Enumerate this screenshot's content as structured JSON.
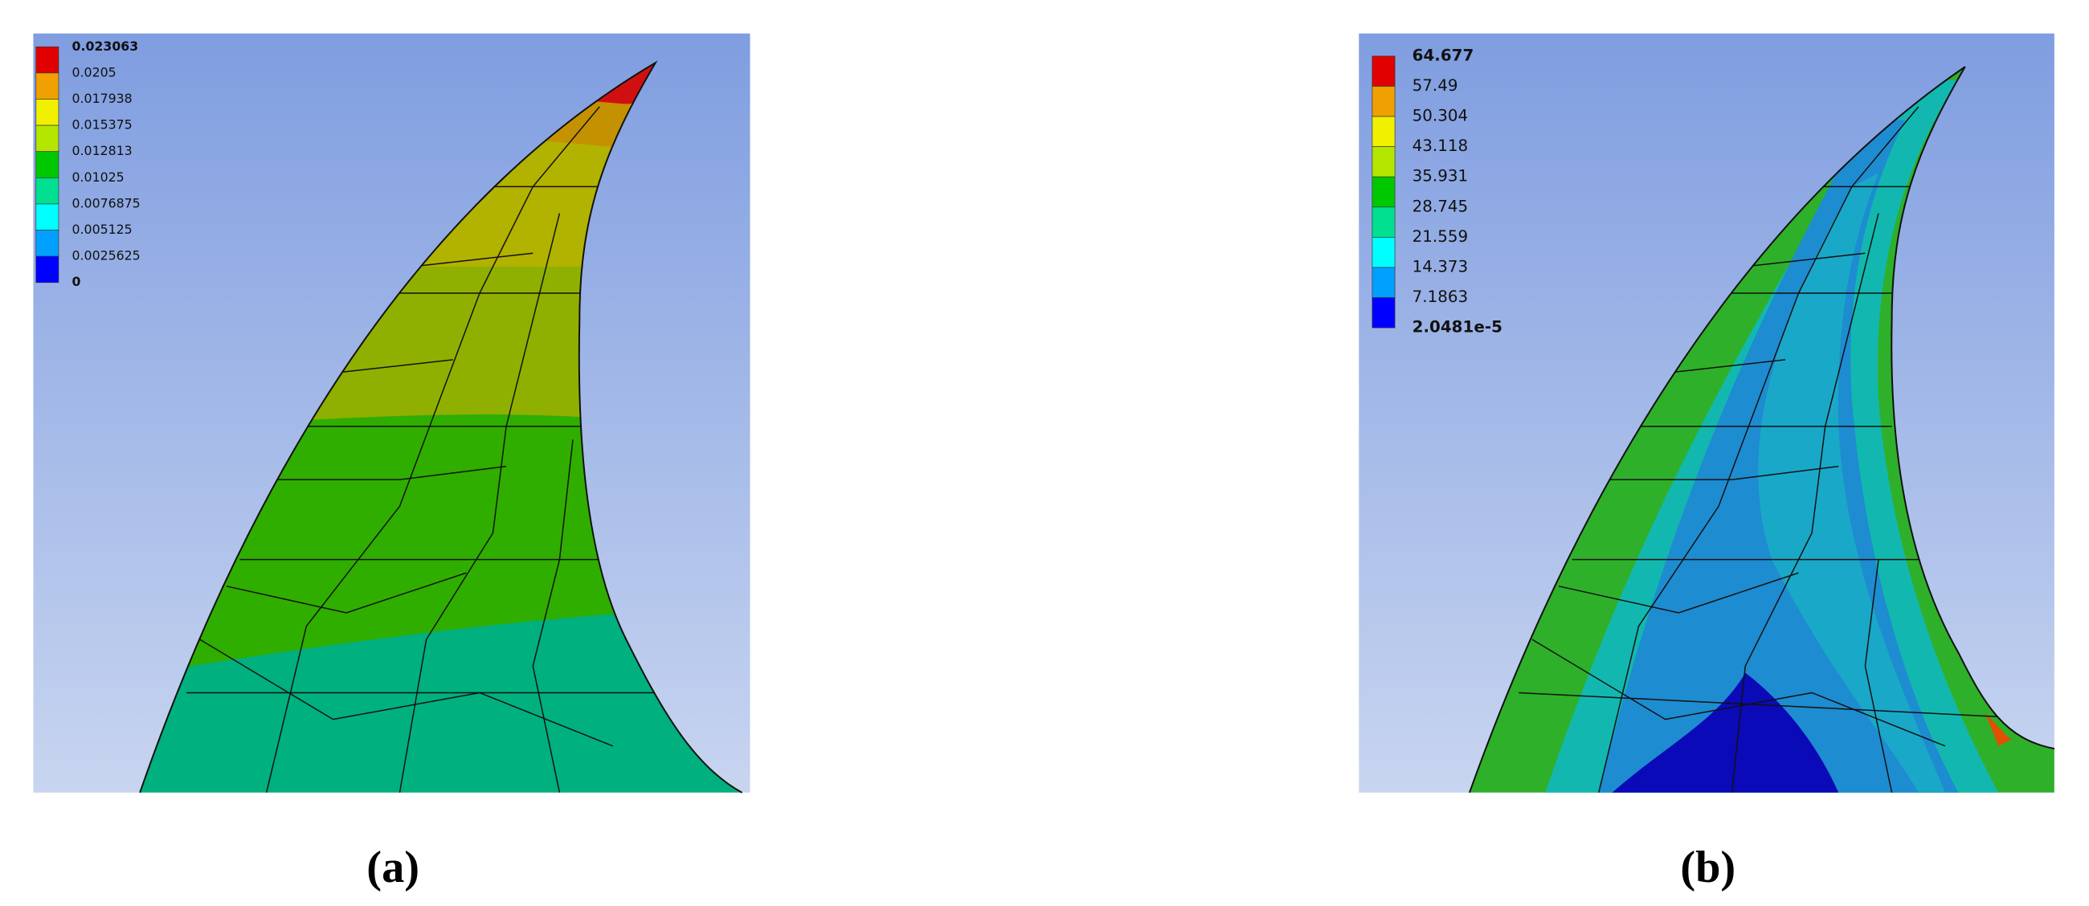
{
  "panels": [
    {
      "caption": "(a)",
      "legend": [
        "0.023063",
        "0.0205",
        "0.017938",
        "0.015375",
        "0.012813",
        "0.01025",
        "0.0076875",
        "0.005125",
        "0.0025625",
        "0"
      ]
    },
    {
      "caption": "(b)",
      "legend": [
        "64.677",
        "57.49",
        "50.304",
        "43.118",
        "35.931",
        "28.745",
        "21.559",
        "14.373",
        "7.1863",
        "2.0481e-5"
      ]
    }
  ]
}
